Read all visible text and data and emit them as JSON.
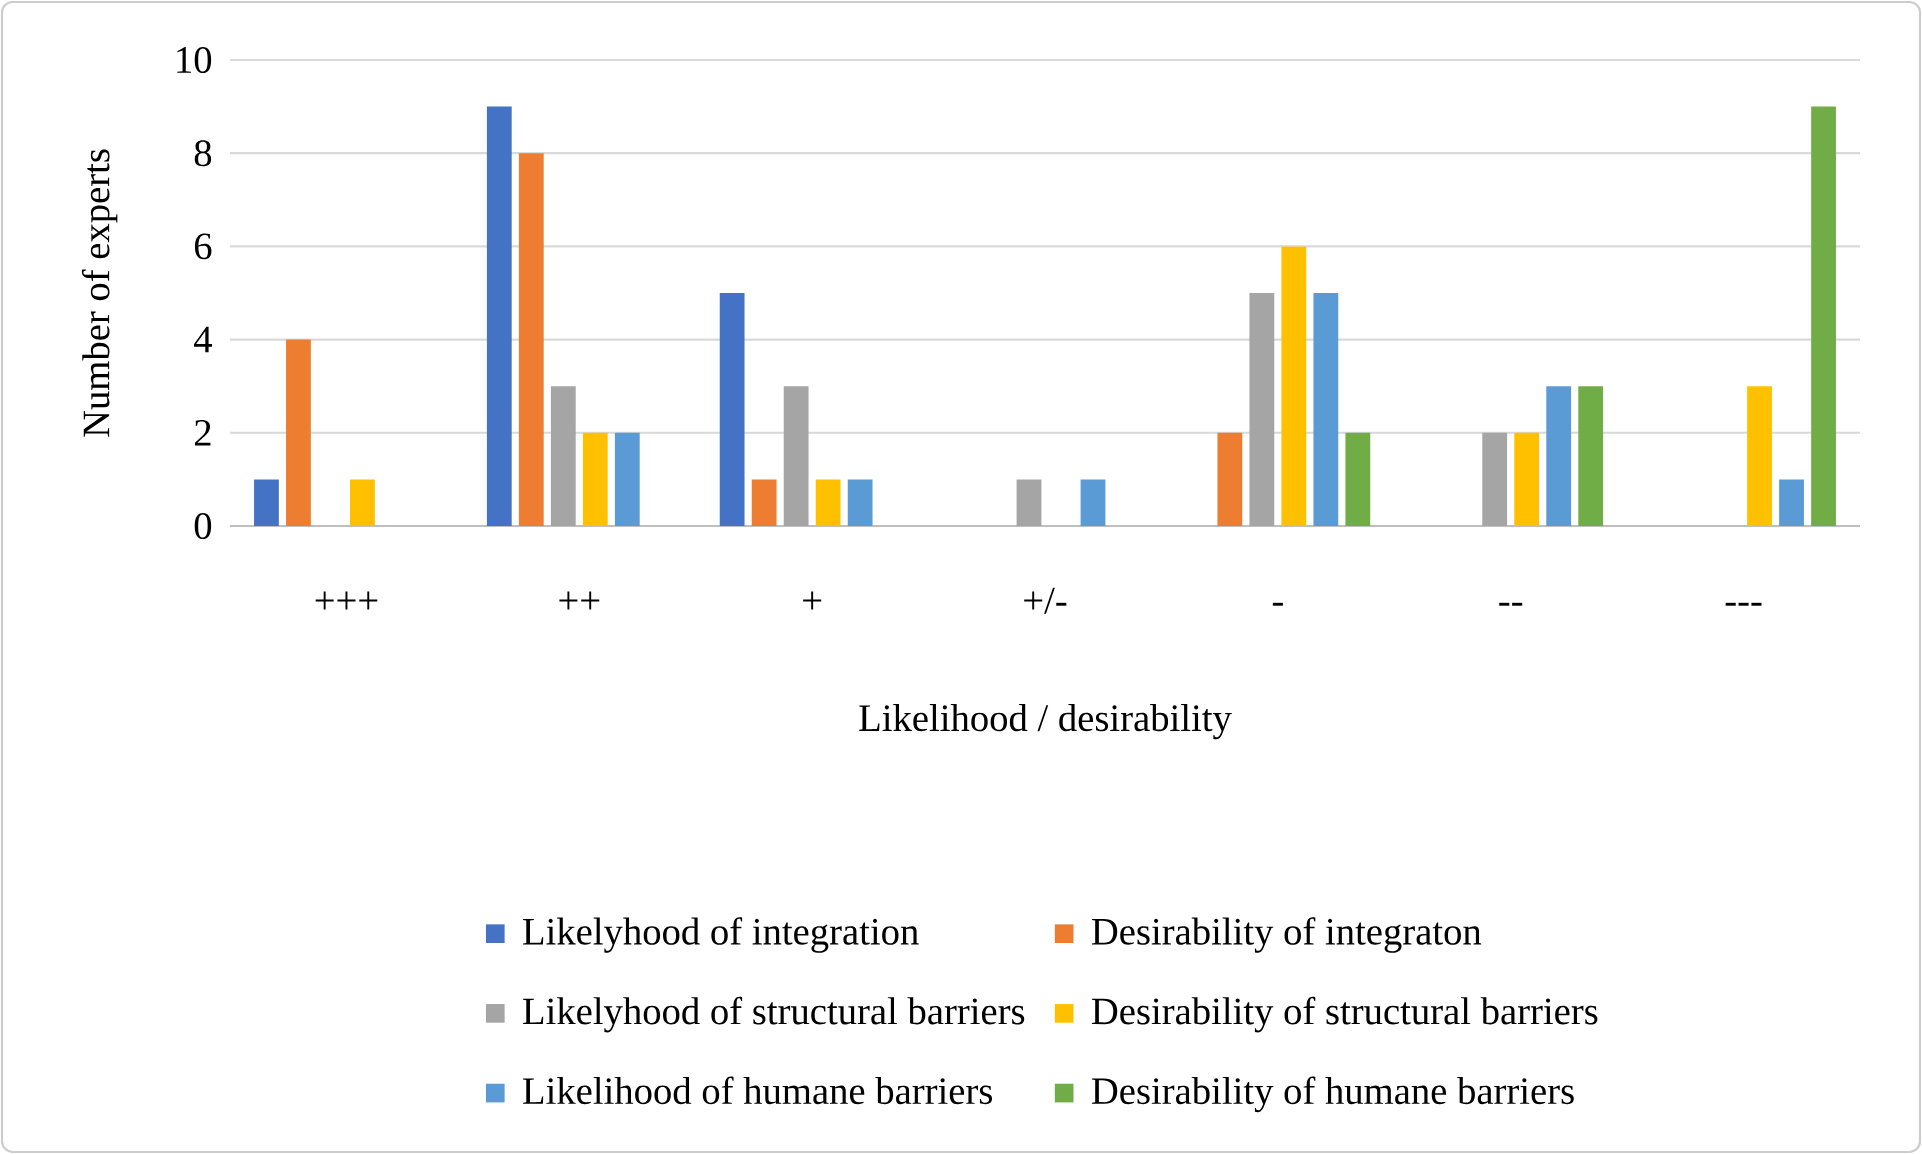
{
  "chart_data": {
    "type": "bar",
    "xlabel": "Likelihood / desirability",
    "ylabel": "Number of experts",
    "categories": [
      "+++",
      "++",
      "+",
      "+/-",
      "-",
      "--",
      "---"
    ],
    "series": [
      {
        "name": "Likelyhood of integration",
        "color": "#4472c4",
        "values": [
          1,
          9,
          5,
          0,
          0,
          0,
          0
        ]
      },
      {
        "name": "Desirability of integraton",
        "color": "#ed7d31",
        "values": [
          4,
          8,
          1,
          0,
          2,
          0,
          0
        ]
      },
      {
        "name": "Likelyhood of structural barriers",
        "color": "#a5a5a5",
        "values": [
          0,
          3,
          3,
          1,
          5,
          2,
          0
        ]
      },
      {
        "name": "Desirability of structural barriers",
        "color": "#ffc000",
        "values": [
          1,
          2,
          1,
          0,
          6,
          2,
          3
        ]
      },
      {
        "name": "Likelihood of humane barriers",
        "color": "#5b9bd5",
        "values": [
          0,
          2,
          1,
          1,
          5,
          3,
          1
        ]
      },
      {
        "name": "Desirability of humane barriers",
        "color": "#70ad47",
        "values": [
          0,
          0,
          0,
          0,
          2,
          3,
          9
        ]
      }
    ],
    "ylim": [
      0,
      10
    ],
    "yticks": [
      0,
      2,
      4,
      6,
      8,
      10
    ],
    "grid": "y",
    "legend": "bottom"
  }
}
